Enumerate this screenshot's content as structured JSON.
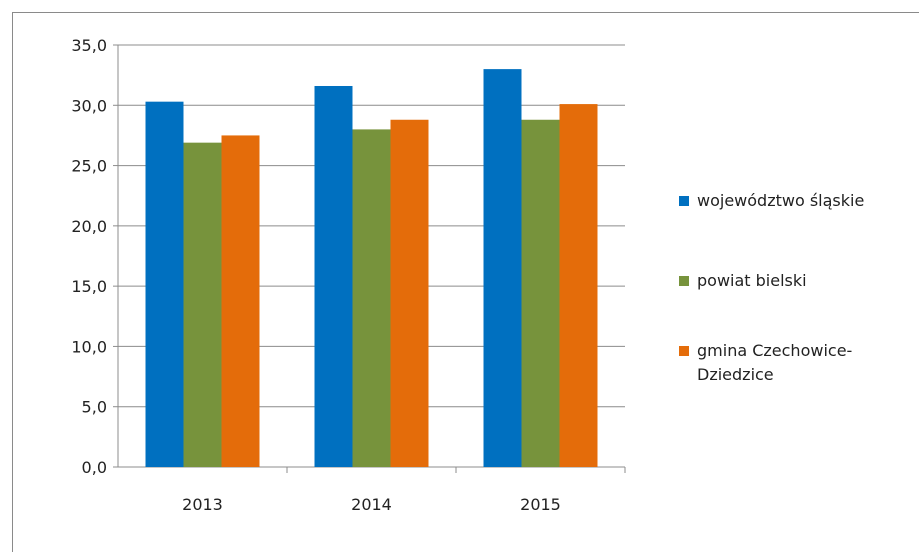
{
  "chart_data": {
    "type": "bar",
    "categories": [
      "2013",
      "2014",
      "2015"
    ],
    "series": [
      {
        "name": "województwo śląskie",
        "values": [
          30.3,
          31.6,
          33.0
        ],
        "color": "#0070C0"
      },
      {
        "name": "powiat bielski",
        "values": [
          26.9,
          28.0,
          28.8
        ],
        "color": "#77933C"
      },
      {
        "name": "gmina Czechowice-Dziedzice",
        "values": [
          27.5,
          28.8,
          30.1
        ],
        "color": "#E46C0A"
      }
    ],
    "yticks": [
      "35,0",
      "30,0",
      "25,0",
      "20,0",
      "15,0",
      "10,0",
      "5,0",
      "0,0"
    ],
    "ylim": [
      0,
      35
    ],
    "grid": true,
    "legend_position": "right",
    "title": "",
    "xlabel": "",
    "ylabel": ""
  }
}
